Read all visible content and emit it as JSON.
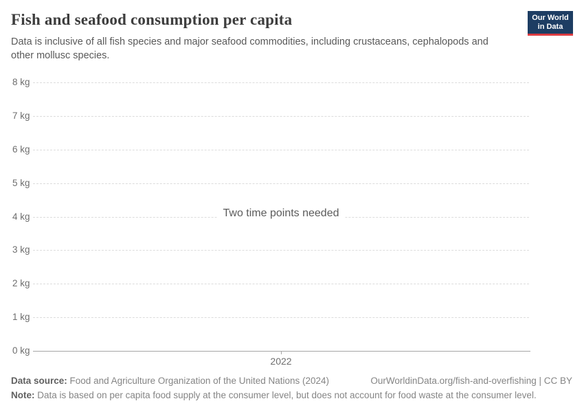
{
  "header": {
    "title": "Fish and seafood consumption per capita",
    "subtitle": "Data is inclusive of all fish species and major seafood commodities, including crustaceans, cephalopods and other mollusc species.",
    "logo": {
      "line1": "Our World",
      "line2": "in Data",
      "bg_color": "#1d3d63",
      "accent_color": "#dc3b40"
    }
  },
  "chart_data": {
    "type": "line",
    "title": "Fish and seafood consumption per capita",
    "unit": "kg",
    "series": [],
    "empty_message": "Two time points needed",
    "grid": true,
    "ylim": [
      0,
      8
    ],
    "yticks": [
      {
        "value": 0,
        "label": "0 kg"
      },
      {
        "value": 1,
        "label": "1 kg"
      },
      {
        "value": 2,
        "label": "2 kg"
      },
      {
        "value": 3,
        "label": "3 kg"
      },
      {
        "value": 4,
        "label": "4 kg"
      },
      {
        "value": 5,
        "label": "5 kg"
      },
      {
        "value": 6,
        "label": "6 kg"
      },
      {
        "value": 7,
        "label": "7 kg"
      },
      {
        "value": 8,
        "label": "8 kg"
      }
    ],
    "xticks": [
      {
        "value": 2022,
        "label": "2022"
      }
    ],
    "colors": {
      "gridline": "#dcdcdc",
      "axis_line": "#a5a5a5",
      "tick_label": "#6e6e6e"
    }
  },
  "footer": {
    "source_label": "Data source:",
    "source_text": "Food and Agriculture Organization of the United Nations (2024)",
    "link_text": "OurWorldinData.org/fish-and-overfishing | CC BY",
    "note_label": "Note:",
    "note_text": "Data is based on per capita food supply at the consumer level, but does not account for food waste at the consumer level."
  }
}
